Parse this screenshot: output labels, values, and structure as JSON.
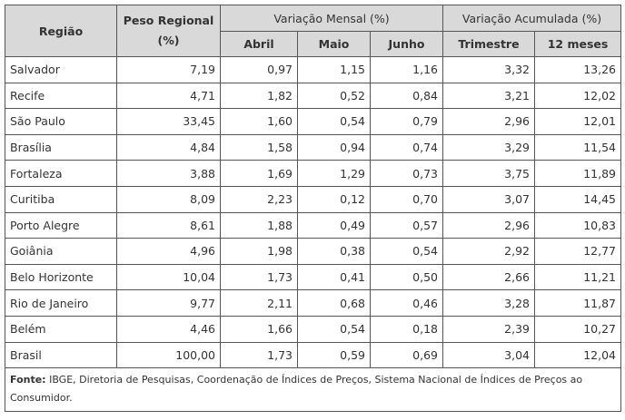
{
  "headers": {
    "regiao": "Região",
    "peso": "Peso Regional (%)",
    "mensal": "Variação Mensal (%)",
    "acumulada": "Variação Acumulada (%)",
    "abril": "Abril",
    "maio": "Maio",
    "junho": "Junho",
    "trimestre": "Trimestre",
    "meses12": "12 meses"
  },
  "rows": [
    [
      "Salvador",
      "7,19",
      "0,97",
      "1,15",
      "1,16",
      "3,32",
      "13,26"
    ],
    [
      "Recife",
      "4,71",
      "1,82",
      "0,52",
      "0,84",
      "3,21",
      "12,02"
    ],
    [
      "São Paulo",
      "33,45",
      "1,60",
      "0,54",
      "0,79",
      "2,96",
      "12,01"
    ],
    [
      "Brasília",
      "4,84",
      "1,58",
      "0,94",
      "0,74",
      "3,29",
      "11,54"
    ],
    [
      "Fortaleza",
      "3,88",
      "1,69",
      "1,29",
      "0,73",
      "3,75",
      "11,89"
    ],
    [
      "Curitiba",
      "8,09",
      "2,23",
      "0,12",
      "0,70",
      "3,07",
      "14,45"
    ],
    [
      "Porto Alegre",
      "8,61",
      "1,88",
      "0,49",
      "0,57",
      "2,96",
      "10,83"
    ],
    [
      "Goiânia",
      "4,96",
      "1,98",
      "0,38",
      "0,54",
      "2,92",
      "12,77"
    ],
    [
      "Belo Horizonte",
      "10,04",
      "1,73",
      "0,41",
      "0,50",
      "2,66",
      "11,21"
    ],
    [
      "Rio de Janeiro",
      "9,77",
      "2,11",
      "0,68",
      "0,46",
      "3,28",
      "11,87"
    ],
    [
      "Belém",
      "4,46",
      "1,66",
      "0,54",
      "0,18",
      "2,39",
      "10,27"
    ],
    [
      "Brasil",
      "100,00",
      "1,73",
      "0,59",
      "0,69",
      "3,04",
      "12,04"
    ]
  ],
  "footer": {
    "label": "Fonte:",
    "text": " IBGE, Diretoria de Pesquisas, Coordenação de Índices de Preços, Sistema Nacional de Índices de Preços ao Consumidor."
  }
}
